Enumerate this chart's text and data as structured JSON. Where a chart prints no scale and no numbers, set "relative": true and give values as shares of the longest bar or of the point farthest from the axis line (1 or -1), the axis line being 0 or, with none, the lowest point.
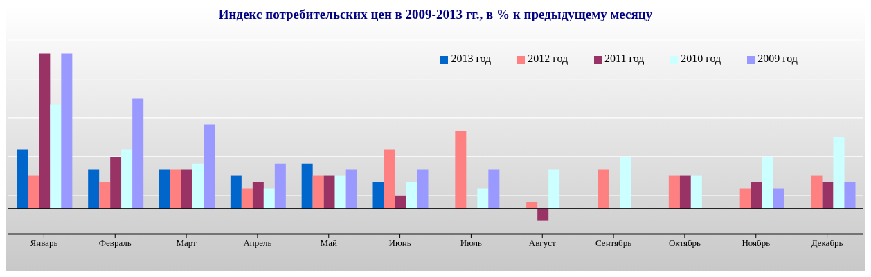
{
  "chart_data": {
    "type": "bar",
    "title": "Индекс потребительских цен в 2009-2013 гг., в % к предыдущему месяцу",
    "relative": true,
    "grid": "y",
    "legend": "top right",
    "categories": [
      "Январь",
      "Февраль",
      "Март",
      "Апрель",
      "Май",
      "Июнь",
      "Июль",
      "Август",
      "Сентябрь",
      "Октябрь",
      "Ноябрь",
      "Декабрь"
    ],
    "series": [
      {
        "name": "2013 год",
        "color": "#0066cc",
        "values": [
          0.38,
          0.25,
          0.25,
          0.21,
          0.29,
          0.17,
          null,
          null,
          null,
          null,
          null,
          null
        ]
      },
      {
        "name": "2012 год",
        "color": "#ff8080",
        "values": [
          0.21,
          0.17,
          0.25,
          0.13,
          0.21,
          0.38,
          0.5,
          0.04,
          0.25,
          0.21,
          0.13,
          0.21
        ]
      },
      {
        "name": "2011 год",
        "color": "#993366",
        "values": [
          1,
          0.33,
          0.25,
          0.17,
          0.21,
          0.08,
          0,
          -0.08,
          0,
          0.21,
          0.17,
          0.17
        ]
      },
      {
        "name": "2010 год",
        "color": "#ccffff",
        "values": [
          0.67,
          0.38,
          0.29,
          0.13,
          0.21,
          0.17,
          0.13,
          0.25,
          0.33,
          0.21,
          0.33,
          0.46
        ]
      },
      {
        "name": "2009 год",
        "color": "#9999ff",
        "values": [
          1,
          0.71,
          0.54,
          0.29,
          0.25,
          0.25,
          0.25,
          0,
          0,
          0,
          0.13,
          0.17
        ]
      }
    ]
  }
}
